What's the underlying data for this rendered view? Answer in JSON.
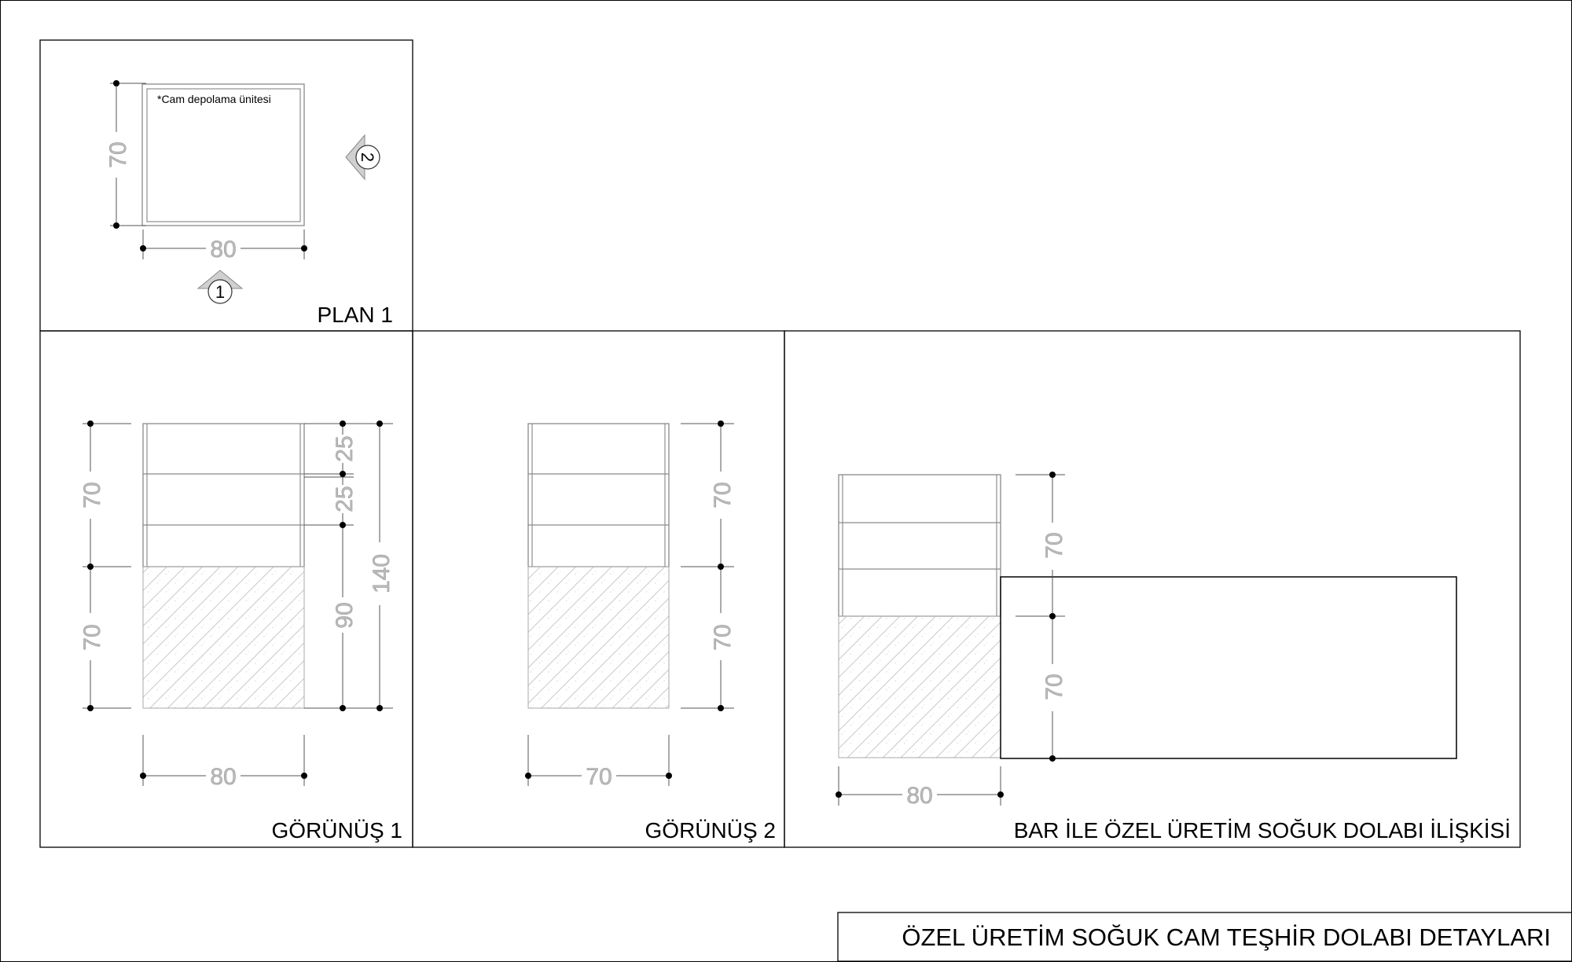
{
  "sheet_title": "ÖZEL ÜRETİM SOĞUK CAM TEŞHİR DOLABI DETAYLARI",
  "plan1": {
    "title": "PLAN 1",
    "note": "*Cam depolama ünitesi",
    "dim_depth": "70",
    "dim_width": "80",
    "marker_1": "1",
    "marker_2": "2"
  },
  "view1": {
    "title": "GÖRÜNÜŞ 1",
    "dim_upper": "70",
    "dim_lower": "70",
    "dim_shelf_a": "25",
    "dim_shelf_b": "25",
    "dim_base": "90",
    "dim_total": "140",
    "dim_width": "80"
  },
  "view2": {
    "title": "GÖRÜNÜŞ 2",
    "dim_upper": "70",
    "dim_lower": "70",
    "dim_width": "70"
  },
  "relation": {
    "title": "BAR İLE ÖZEL ÜRETİM SOĞUK DOLABI İLİŞKİSİ",
    "dim_upper": "70",
    "dim_lower": "70",
    "dim_width": "80"
  }
}
